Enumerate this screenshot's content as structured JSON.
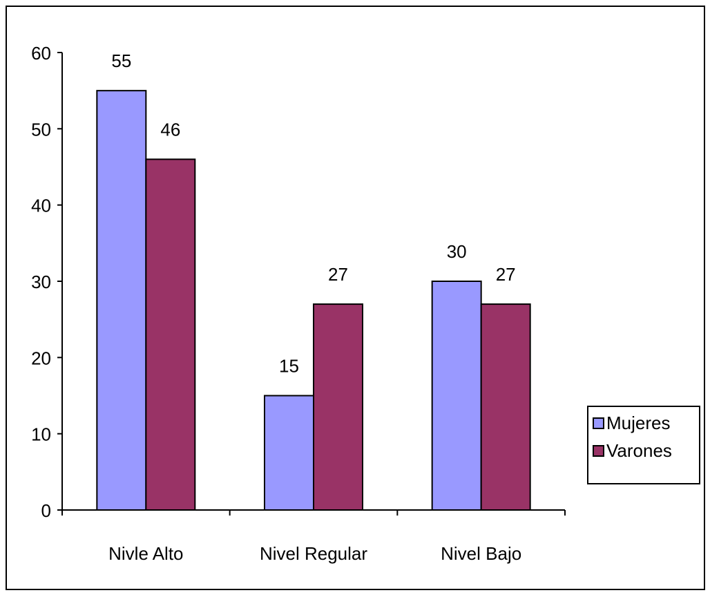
{
  "chart_data": {
    "type": "bar",
    "title": "",
    "xlabel": "",
    "ylabel": "",
    "categories": [
      "Nivle Alto",
      "Nivel Regular",
      "Nivel Bajo"
    ],
    "series": [
      {
        "name": "Mujeres",
        "values": [
          55,
          15,
          30
        ],
        "color": "#9999ff"
      },
      {
        "name": "Varones",
        "values": [
          46,
          27,
          27
        ],
        "color": "#993366"
      }
    ],
    "ylim": [
      0,
      60
    ],
    "yticks": [
      "0",
      "10",
      "20",
      "30",
      "40",
      "50",
      "60"
    ],
    "data_labels": [
      [
        "55",
        "15",
        "30"
      ],
      [
        "46",
        "27",
        "27"
      ]
    ],
    "grid": false,
    "legend_position": "right"
  }
}
